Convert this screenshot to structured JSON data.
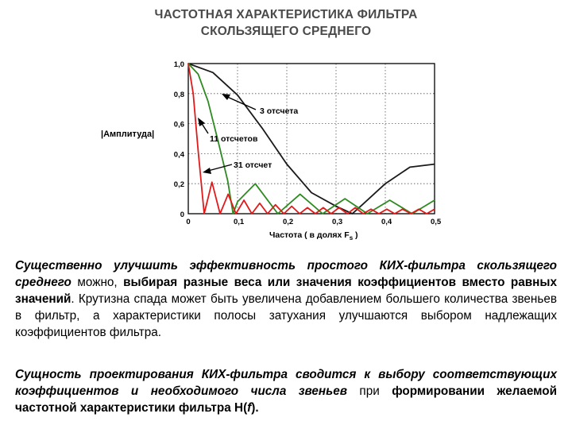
{
  "title_lines": [
    "ЧАСТОТНАЯ ХАРАКТЕРИСТИКА ФИЛЬТРА",
    "СКОЛЬЗЯЩЕГО СРЕДНЕГО"
  ],
  "colors": {
    "series_3": "#1a1a1a",
    "series_11": "#2e8b22",
    "series_31": "#e01b1b",
    "title": "#4a4a4a"
  },
  "chart_data": {
    "type": "line",
    "ylabel": "|Амплитуда|",
    "xlabel_prefix": "Частота  ( в долях  F",
    "xlabel_subscript": "s",
    "xlabel_suffix": " )",
    "xlim": [
      0,
      0.5
    ],
    "ylim": [
      0,
      1.0
    ],
    "xticks": [
      0,
      0.1,
      0.2,
      0.3,
      0.4,
      0.5
    ],
    "xtick_labels": [
      "0",
      "0,1",
      "0,2",
      "0,3",
      "0,4",
      "0,5"
    ],
    "yticks": [
      0,
      0.2,
      0.4,
      0.6,
      0.8,
      1.0
    ],
    "ytick_labels": [
      "0",
      "0,2",
      "0,4",
      "0,6",
      "0,8",
      "1,0"
    ],
    "grid": true,
    "series": [
      {
        "key": "s3",
        "taps": 3,
        "annotation": "3 отсчета",
        "color": "#1a1a1a",
        "x": [
          0,
          0.05,
          0.1,
          0.15,
          0.2,
          0.25,
          0.3,
          0.333,
          0.35,
          0.4,
          0.45,
          0.5
        ],
        "y": [
          1.0,
          0.94,
          0.79,
          0.57,
          0.33,
          0.14,
          0.05,
          0.0,
          0.05,
          0.2,
          0.31,
          0.33
        ]
      },
      {
        "key": "s11",
        "taps": 11,
        "annotation": "11 отсчетов",
        "color": "#2e8b22",
        "x": [
          0,
          0.02,
          0.04,
          0.06,
          0.08,
          0.0909,
          0.1,
          0.136,
          0.1818,
          0.227,
          0.2727,
          0.318,
          0.3636,
          0.409,
          0.4545,
          0.5
        ],
        "y": [
          1.0,
          0.93,
          0.75,
          0.49,
          0.22,
          0.0,
          0.08,
          0.2,
          0.0,
          0.13,
          0.0,
          0.1,
          0.0,
          0.09,
          0.0,
          0.09
        ]
      },
      {
        "key": "s31",
        "taps": 31,
        "annotation": "31 отсчет",
        "color": "#e01b1b",
        "x": [
          0,
          0.01,
          0.02,
          0.0323,
          0.048,
          0.0645,
          0.081,
          0.0968,
          0.113,
          0.129,
          0.145,
          0.161,
          0.177,
          0.194,
          0.21,
          0.226,
          0.242,
          0.258,
          0.274,
          0.29,
          0.306,
          0.323,
          0.339,
          0.355,
          0.371,
          0.387,
          0.403,
          0.419,
          0.435,
          0.452,
          0.468,
          0.484,
          0.5
        ],
        "y": [
          1.0,
          0.8,
          0.42,
          0.0,
          0.21,
          0.0,
          0.13,
          0.0,
          0.09,
          0.0,
          0.07,
          0.0,
          0.06,
          0.0,
          0.05,
          0.0,
          0.04,
          0.0,
          0.04,
          0.0,
          0.04,
          0.0,
          0.04,
          0.0,
          0.03,
          0.0,
          0.03,
          0.0,
          0.03,
          0.0,
          0.03,
          0.0,
          0.03
        ]
      }
    ]
  },
  "paragraphs": {
    "p1": {
      "s1": "Существенно улучшить эффективность простого КИХ-фильтра скользящего среднего",
      "s2": " можно, ",
      "s3": "выбирая разные веса или значения коэффициентов вместо равных значений",
      "s4": ". Крутизна спада может быть увеличена добавлением большего количества звеньев в фильтр, а характеристики полосы затухания улучшаются выбором надлежащих коэффициентов фильтра."
    },
    "p2": {
      "s1": "Сущность проектирования КИХ-фильтра сводится к выбору соответствующих коэффициентов и необходимого числа звеньев",
      "s2": " при ",
      "s3": "формировании желаемой частотной характеристики фильтра Н(",
      "s4": "f",
      "s5": ")."
    }
  }
}
